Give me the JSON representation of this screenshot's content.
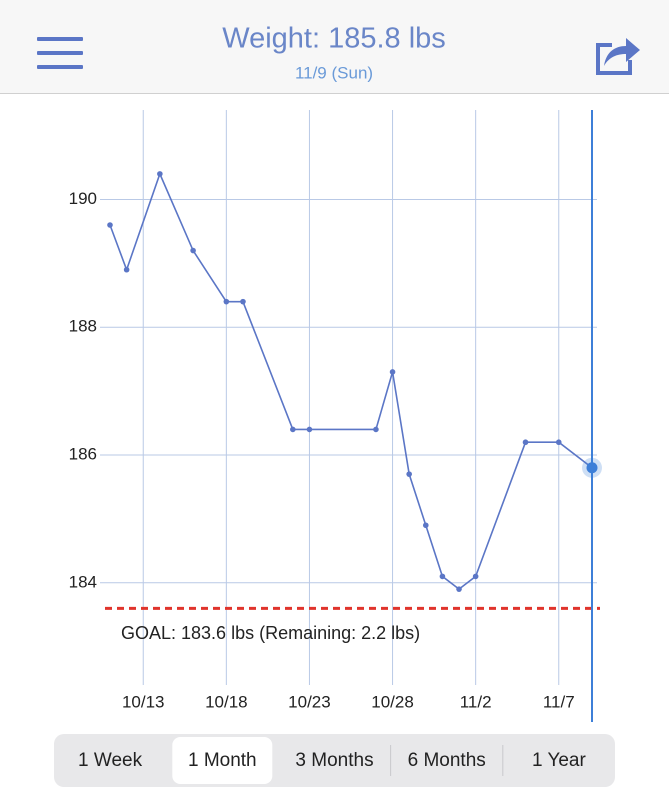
{
  "header": {
    "title": "Weight: 185.8 lbs",
    "subtitle": "11/9 (Sun)"
  },
  "chart_data": {
    "type": "line",
    "x": [
      "10/11",
      "10/12",
      "10/14",
      "10/16",
      "10/18",
      "10/19",
      "10/22",
      "10/23",
      "10/27",
      "10/28",
      "10/29",
      "10/30",
      "10/31",
      "11/1",
      "11/2",
      "11/5",
      "11/7",
      "11/9"
    ],
    "values": [
      189.6,
      188.9,
      190.4,
      189.2,
      188.4,
      188.4,
      186.4,
      186.4,
      186.4,
      187.3,
      185.7,
      184.9,
      184.1,
      183.9,
      184.1,
      186.2,
      186.2,
      185.8
    ],
    "color": "#5b76c6",
    "xlim": [
      "10/11",
      "11/9"
    ],
    "xticks": [
      "10/13",
      "10/18",
      "10/23",
      "10/28",
      "11/2",
      "11/7"
    ],
    "ylim": [
      182.4,
      191.4
    ],
    "yticks": [
      184,
      186,
      188,
      190
    ],
    "grid": true,
    "goal": 183.6,
    "goal_label": "GOAL: 183.6 lbs (Remaining: 2.2 lbs)",
    "goal_color": "#e0342c",
    "selected_index": 17
  },
  "range_tabs": {
    "options": [
      "1 Week",
      "1 Month",
      "3 Months",
      "6 Months",
      "1 Year"
    ],
    "selected": 1
  }
}
